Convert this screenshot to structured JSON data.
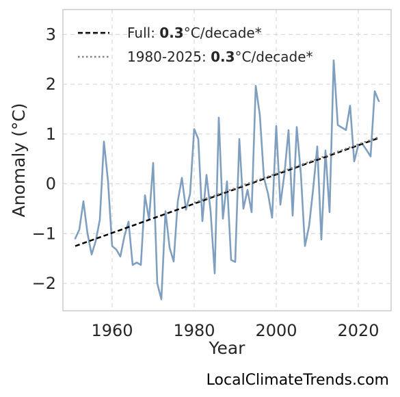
{
  "chart_data": {
    "type": "line",
    "xlabel": "Year",
    "ylabel": "Anomaly (°C)",
    "xlim": [
      1948,
      2028
    ],
    "ylim": [
      -2.55,
      3.5
    ],
    "x_ticks": [
      1960,
      1980,
      2000,
      2020
    ],
    "y_ticks": [
      -2,
      -1,
      0,
      1,
      2,
      3
    ],
    "y_tick_labels": [
      "−2",
      "−1",
      "0",
      "1",
      "2",
      "3"
    ],
    "grid": true,
    "legend_position": "top-left",
    "series": [
      {
        "kind": "observed",
        "color": "#7f9fc0",
        "x": [
          1951,
          1952,
          1953,
          1954,
          1955,
          1956,
          1957,
          1958,
          1959,
          1960,
          1961,
          1962,
          1963,
          1964,
          1965,
          1966,
          1967,
          1968,
          1969,
          1970,
          1971,
          1972,
          1973,
          1974,
          1975,
          1976,
          1977,
          1978,
          1979,
          1980,
          1981,
          1982,
          1983,
          1984,
          1985,
          1986,
          1987,
          1988,
          1989,
          1990,
          1991,
          1992,
          1993,
          1994,
          1995,
          1996,
          1997,
          1998,
          1999,
          2000,
          2001,
          2002,
          2003,
          2004,
          2005,
          2006,
          2007,
          2008,
          2009,
          2010,
          2011,
          2012,
          2013,
          2014,
          2015,
          2016,
          2017,
          2018,
          2019,
          2020,
          2021,
          2022,
          2023,
          2024,
          2025
        ],
        "values": [
          -1.1,
          -0.92,
          -0.35,
          -1.0,
          -1.42,
          -1.15,
          -0.72,
          0.85,
          0.05,
          -1.25,
          -1.32,
          -1.46,
          -1.05,
          -0.76,
          -1.63,
          -1.58,
          -1.63,
          -0.23,
          -0.72,
          0.42,
          -2.0,
          -2.32,
          -0.55,
          -1.28,
          -1.56,
          -0.35,
          0.12,
          -0.52,
          -0.2,
          1.1,
          0.9,
          -0.75,
          0.18,
          -0.55,
          -1.8,
          1.33,
          -0.7,
          0.05,
          -1.53,
          -1.57,
          0.9,
          -0.5,
          -0.12,
          -0.57,
          1.97,
          1.38,
          0.12,
          -0.2,
          -0.68,
          1.16,
          -0.42,
          0.2,
          1.08,
          -0.64,
          1.14,
          0.2,
          -1.25,
          -0.85,
          -0.1,
          0.75,
          -1.12,
          0.67,
          -0.57,
          2.48,
          1.18,
          1.13,
          1.08,
          1.57,
          0.45,
          0.78,
          0.8,
          0.68,
          0.55,
          1.86,
          1.66
        ]
      },
      {
        "kind": "trend-full",
        "color": "#000000",
        "x": [
          1951,
          2025
        ],
        "values": [
          -1.25,
          0.92
        ]
      },
      {
        "kind": "trend-recent",
        "color": "#808080",
        "x": [
          1980,
          2025
        ],
        "values": [
          -0.38,
          0.94
        ]
      }
    ],
    "legend": [
      {
        "prefix": "Full: ",
        "bold": "0.3",
        "suffix": "°C/decade*"
      },
      {
        "prefix": "1980-2025: ",
        "bold": "0.3",
        "suffix": "°C/decade*"
      }
    ]
  },
  "watermark": "LocalClimateTrends.com"
}
